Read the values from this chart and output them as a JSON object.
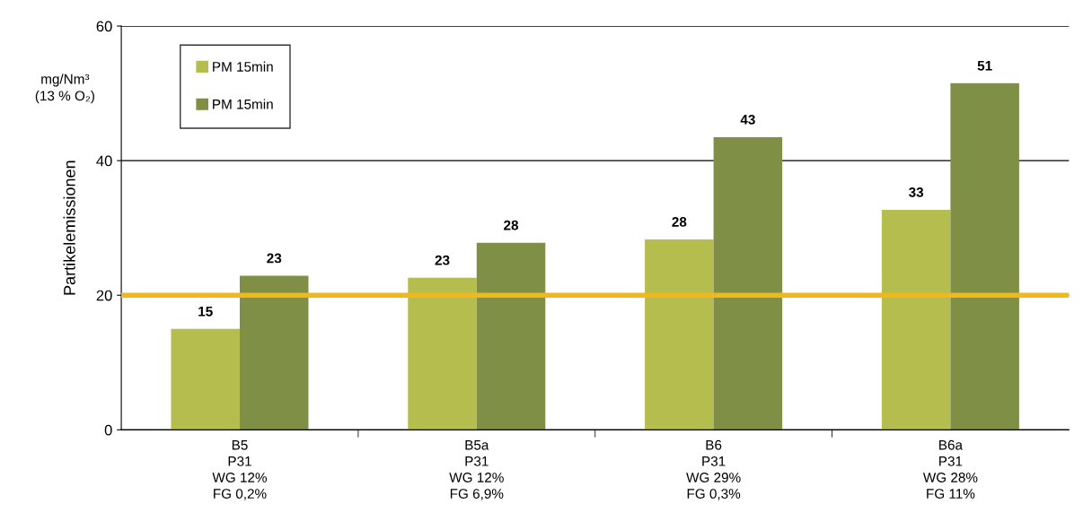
{
  "chart_data": {
    "type": "bar",
    "ylabel": "Partikelemissionen",
    "annotations": [
      "mg/Nm³\n(13 % O₂)"
    ],
    "categories": [
      "B5\nP31\nWG 12%\nFG 0,2%",
      "B5a\nP31\nWG 12%\nFG 6,9%",
      "B6\nP31\nWG 29%\nFG 0,3%",
      "B6a\nP31\nWG 28%\nFG 11%"
    ],
    "series": [
      {
        "name": "PM 15min",
        "color": "#b5bd4e",
        "values": [
          15.0,
          22.6,
          28.3,
          32.7
        ],
        "value_labels": [
          "15",
          "23",
          "28",
          "33"
        ]
      },
      {
        "name": "PM 15min",
        "color": "#7f8f45",
        "values": [
          22.9,
          27.8,
          43.5,
          51.5
        ],
        "value_labels": [
          "23",
          "28",
          "43",
          "51"
        ]
      }
    ],
    "ylim": [
      0,
      60
    ],
    "yticks": [
      0,
      20,
      40,
      60
    ],
    "grid": "y",
    "legend": "top left",
    "ref_lines": [
      {
        "axis": "y",
        "value": 20,
        "color": "#f0b81c"
      }
    ]
  }
}
